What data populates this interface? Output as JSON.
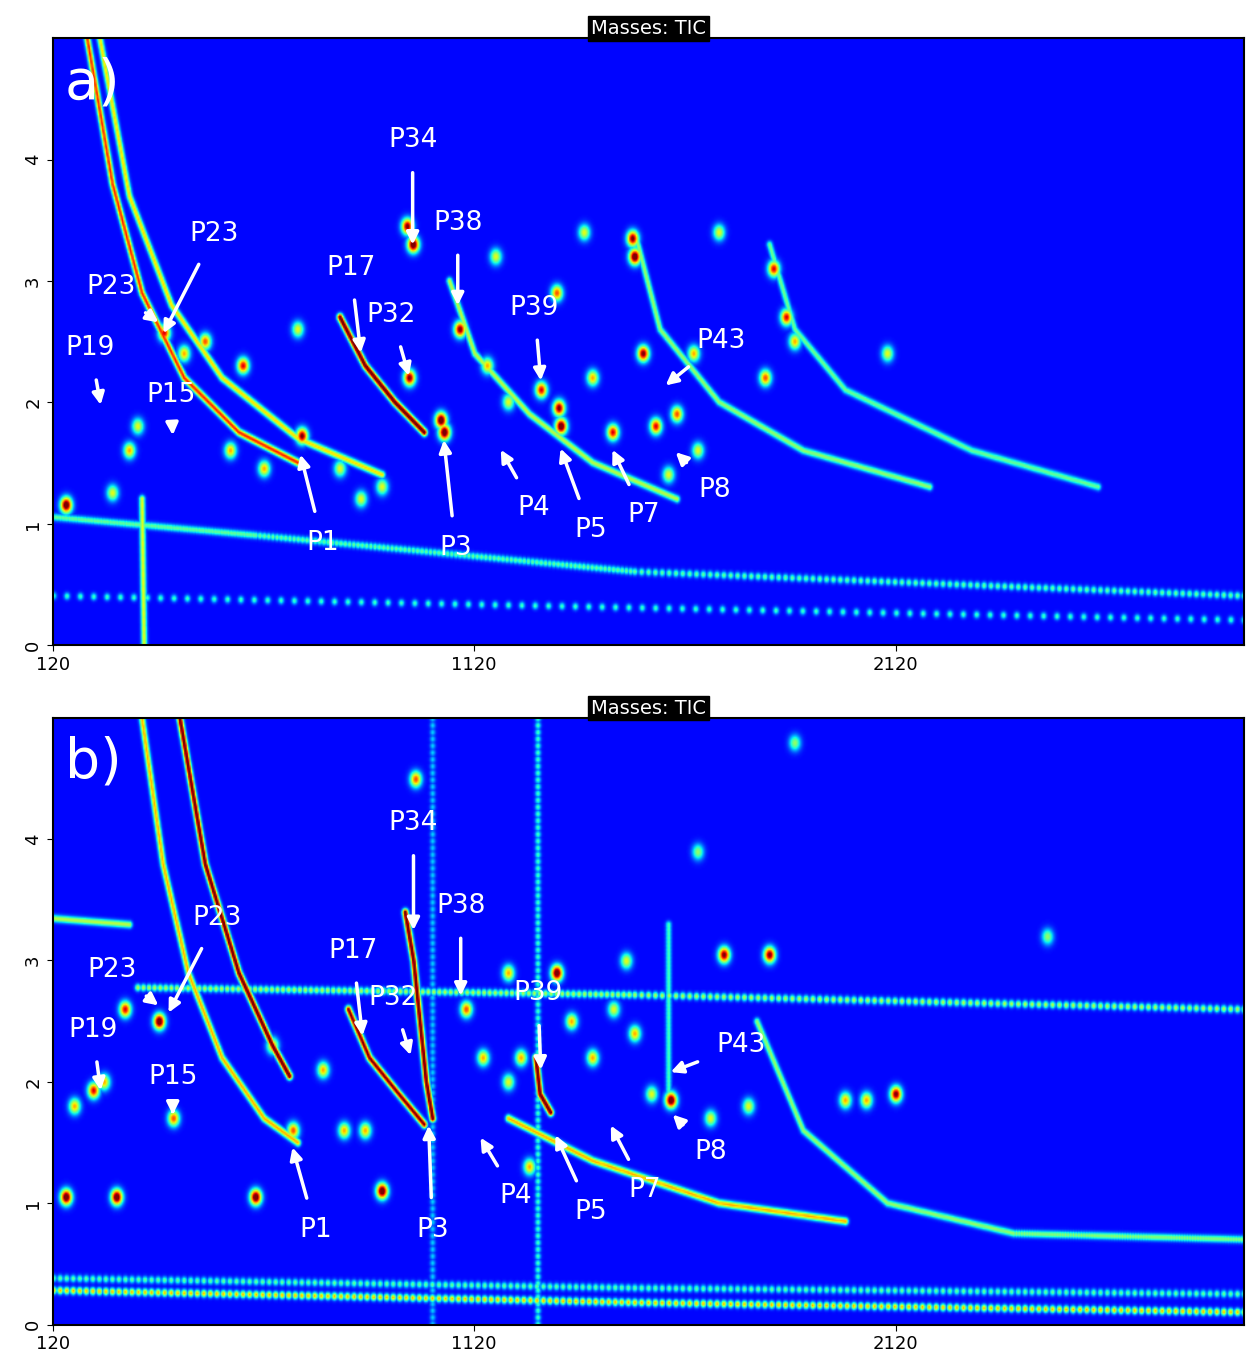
{
  "chart_data": [
    {
      "type": "heatmap",
      "title": "Masses: TIC",
      "panel_label": "a)",
      "xlim": [
        120,
        2947
      ],
      "ylim": [
        0,
        5
      ],
      "xticks": [
        120,
        1120,
        2120
      ],
      "yticks": [
        0,
        1,
        2,
        3,
        4
      ],
      "annotations": [
        {
          "text": "P34",
          "x": 974,
          "y": 4.16,
          "tip_x": 974,
          "tip_y": 3.3
        },
        {
          "text": "P38",
          "x": 1081,
          "y": 3.48,
          "tip_x": 1081,
          "tip_y": 2.8
        },
        {
          "text": "P17",
          "x": 827,
          "y": 3.11,
          "tip_x": 851,
          "tip_y": 2.41
        },
        {
          "text": "P32",
          "x": 924,
          "y": 2.72,
          "tip_x": 965,
          "tip_y": 2.22
        },
        {
          "text": "P23",
          "x": 258,
          "y": 2.95,
          "tip_x": 371,
          "tip_y": 2.66
        },
        {
          "text": "P23",
          "x": 504,
          "y": 3.39,
          "tip_x": 383,
          "tip_y": 2.57
        },
        {
          "text": "P19",
          "x": 210,
          "y": 2.45,
          "tip_x": 234,
          "tip_y": 1.98
        },
        {
          "text": "P15",
          "x": 400,
          "y": 2.06,
          "tip_x": 405,
          "tip_y": 1.73
        },
        {
          "text": "P1",
          "x": 761,
          "y": 0.84,
          "tip_x": 708,
          "tip_y": 1.57
        },
        {
          "text": "P3",
          "x": 1076,
          "y": 0.8,
          "tip_x": 1048,
          "tip_y": 1.69
        },
        {
          "text": "P4",
          "x": 1261,
          "y": 1.13,
          "tip_x": 1183,
          "tip_y": 1.61
        },
        {
          "text": "P39",
          "x": 1263,
          "y": 2.78,
          "tip_x": 1278,
          "tip_y": 2.18
        },
        {
          "text": "P5",
          "x": 1396,
          "y": 0.95,
          "tip_x": 1325,
          "tip_y": 1.62
        },
        {
          "text": "P7",
          "x": 1522,
          "y": 1.07,
          "tip_x": 1448,
          "tip_y": 1.61
        },
        {
          "text": "P43",
          "x": 1705,
          "y": 2.51,
          "tip_x": 1574,
          "tip_y": 2.14
        },
        {
          "text": "P8",
          "x": 1691,
          "y": 1.28,
          "tip_x": 1598,
          "tip_y": 1.59
        }
      ],
      "peaks": [
        [
          150,
          1.15,
          1.0
        ],
        [
          1048,
          1.75,
          1.0
        ],
        [
          1040,
          1.85,
          1.0
        ],
        [
          965,
          2.2,
          0.9
        ],
        [
          974,
          3.3,
          1.0
        ],
        [
          960,
          3.45,
          0.9
        ],
        [
          1325,
          1.8,
          1.0
        ],
        [
          1320,
          1.95,
          0.9
        ],
        [
          1278,
          2.1,
          0.8
        ],
        [
          1500,
          3.2,
          1.0
        ],
        [
          1495,
          3.35,
          0.9
        ],
        [
          1520,
          2.4,
          0.9
        ],
        [
          1830,
          3.1,
          0.8
        ],
        [
          1860,
          2.7,
          0.8
        ],
        [
          1550,
          1.8,
          0.8
        ],
        [
          1600,
          1.9,
          0.7
        ],
        [
          710,
          1.72,
          0.9
        ],
        [
          570,
          2.3,
          0.8
        ],
        [
          480,
          2.5,
          0.7
        ],
        [
          383,
          2.57,
          0.8
        ],
        [
          1085,
          2.6,
          0.9
        ],
        [
          1315,
          2.9,
          0.7
        ],
        [
          1448,
          1.75,
          0.8
        ],
        [
          620,
          1.45,
          0.6
        ],
        [
          540,
          1.6,
          0.6
        ],
        [
          430,
          2.4,
          0.6
        ],
        [
          300,
          1.6,
          0.6
        ],
        [
          320,
          1.8,
          0.5
        ],
        [
          260,
          1.25,
          0.5
        ],
        [
          800,
          1.45,
          0.5
        ],
        [
          850,
          1.2,
          0.5
        ],
        [
          900,
          1.3,
          0.5
        ],
        [
          1150,
          2.3,
          0.6
        ],
        [
          1200,
          2.0,
          0.5
        ],
        [
          1400,
          2.2,
          0.6
        ],
        [
          1640,
          2.4,
          0.6
        ],
        [
          1810,
          2.2,
          0.7
        ],
        [
          1880,
          2.5,
          0.6
        ],
        [
          2100,
          2.4,
          0.5
        ],
        [
          1380,
          3.4,
          0.5
        ],
        [
          1170,
          3.2,
          0.5
        ],
        [
          1700,
          3.4,
          0.5
        ],
        [
          1580,
          1.4,
          0.5
        ],
        [
          1650,
          1.6,
          0.5
        ],
        [
          700,
          2.6,
          0.5
        ]
      ],
      "streaks": [
        {
          "points": [
            [
              200,
              5.0
            ],
            [
              260,
              3.8
            ],
            [
              330,
              2.9
            ],
            [
              430,
              2.2
            ],
            [
              560,
              1.75
            ],
            [
              700,
              1.5
            ]
          ],
          "height": 0.75
        },
        {
          "points": [
            [
              230,
              5.0
            ],
            [
              300,
              3.7
            ],
            [
              400,
              2.8
            ],
            [
              520,
              2.2
            ],
            [
              700,
              1.7
            ],
            [
              900,
              1.4
            ]
          ],
          "height": 0.55
        },
        {
          "points": [
            [
              800,
              2.7
            ],
            [
              860,
              2.3
            ],
            [
              930,
              2.0
            ],
            [
              1000,
              1.75
            ]
          ],
          "height": 1.0
        },
        {
          "points": [
            [
              1060,
              3.0
            ],
            [
              1120,
              2.4
            ],
            [
              1250,
              1.9
            ],
            [
              1400,
              1.5
            ],
            [
              1600,
              1.2
            ]
          ],
          "height": 0.45
        },
        {
          "points": [
            [
              1500,
              3.4
            ],
            [
              1560,
              2.6
            ],
            [
              1700,
              2.0
            ],
            [
              1900,
              1.6
            ],
            [
              2200,
              1.3
            ]
          ],
          "height": 0.4
        },
        {
          "points": [
            [
              1820,
              3.3
            ],
            [
              1880,
              2.6
            ],
            [
              2000,
              2.1
            ],
            [
              2300,
              1.6
            ],
            [
              2600,
              1.3
            ]
          ],
          "height": 0.35
        },
        {
          "points": [
            [
              120,
              1.05
            ],
            [
              600,
              0.9
            ],
            [
              1500,
              0.6
            ],
            [
              2947,
              0.4
            ]
          ],
          "height": 0.35
        },
        {
          "points": [
            [
              120,
              0.4
            ],
            [
              2947,
              0.2
            ]
          ],
          "height": 0.3
        },
        {
          "points": [
            [
              330,
              1.2
            ],
            [
              335,
              0.0
            ]
          ],
          "height": 0.5
        }
      ]
    },
    {
      "type": "heatmap",
      "title": "Masses: TIC",
      "panel_label": "b)",
      "xlim": [
        120,
        2947
      ],
      "ylim": [
        0,
        5
      ],
      "xticks": [
        120,
        1120,
        2120
      ],
      "yticks": [
        0,
        1,
        2,
        3,
        4
      ],
      "annotations": [
        {
          "text": "P34",
          "x": 976,
          "y": 4.13,
          "tip_x": 976,
          "tip_y": 3.25
        },
        {
          "text": "P38",
          "x": 1088,
          "y": 3.45,
          "tip_x": 1088,
          "tip_y": 2.71
        },
        {
          "text": "P17",
          "x": 832,
          "y": 3.08,
          "tip_x": 855,
          "tip_y": 2.38
        },
        {
          "text": "P32",
          "x": 927,
          "y": 2.69,
          "tip_x": 969,
          "tip_y": 2.22
        },
        {
          "text": "P23",
          "x": 262,
          "y": 2.92,
          "tip_x": 371,
          "tip_y": 2.63
        },
        {
          "text": "P23",
          "x": 511,
          "y": 3.35,
          "tip_x": 395,
          "tip_y": 2.57
        },
        {
          "text": "P19",
          "x": 215,
          "y": 2.43,
          "tip_x": 234,
          "tip_y": 1.93
        },
        {
          "text": "P15",
          "x": 405,
          "y": 2.04,
          "tip_x": 405,
          "tip_y": 1.73
        },
        {
          "text": "P1",
          "x": 744,
          "y": 0.78,
          "tip_x": 689,
          "tip_y": 1.46
        },
        {
          "text": "P3",
          "x": 1021,
          "y": 0.78,
          "tip_x": 1012,
          "tip_y": 1.64
        },
        {
          "text": "P4",
          "x": 1218,
          "y": 1.06,
          "tip_x": 1135,
          "tip_y": 1.54
        },
        {
          "text": "P39",
          "x": 1271,
          "y": 2.73,
          "tip_x": 1278,
          "tip_y": 2.1
        },
        {
          "text": "P5",
          "x": 1396,
          "y": 0.93,
          "tip_x": 1313,
          "tip_y": 1.56
        },
        {
          "text": "P7",
          "x": 1524,
          "y": 1.11,
          "tip_x": 1444,
          "tip_y": 1.64
        },
        {
          "text": "P43",
          "x": 1752,
          "y": 2.3,
          "tip_x": 1586,
          "tip_y": 2.08
        },
        {
          "text": "P8",
          "x": 1681,
          "y": 1.42,
          "tip_x": 1591,
          "tip_y": 1.73
        }
      ],
      "peaks": [
        [
          150,
          1.05,
          1.0
        ],
        [
          270,
          1.05,
          1.0
        ],
        [
          371,
          2.5,
          1.0
        ],
        [
          1315,
          2.9,
          1.0
        ],
        [
          1586,
          1.85,
          1.0
        ],
        [
          1712,
          3.05,
          0.9
        ],
        [
          1820,
          3.05,
          0.9
        ],
        [
          2120,
          1.9,
          0.9
        ],
        [
          600,
          1.05,
          1.0
        ],
        [
          900,
          1.1,
          1.0
        ],
        [
          980,
          4.5,
          0.7
        ],
        [
          215,
          1.93,
          0.8
        ],
        [
          405,
          1.7,
          0.7
        ],
        [
          689,
          1.6,
          0.7
        ],
        [
          290,
          2.6,
          0.8
        ],
        [
          240,
          2.0,
          0.6
        ],
        [
          170,
          1.8,
          0.6
        ],
        [
          640,
          2.3,
          0.6
        ],
        [
          760,
          2.1,
          0.6
        ],
        [
          810,
          1.6,
          0.6
        ],
        [
          860,
          1.6,
          0.6
        ],
        [
          1100,
          2.6,
          0.7
        ],
        [
          1140,
          2.2,
          0.6
        ],
        [
          1200,
          2.9,
          0.6
        ],
        [
          1230,
          2.2,
          0.6
        ],
        [
          1350,
          2.5,
          0.6
        ],
        [
          1400,
          2.2,
          0.6
        ],
        [
          1450,
          2.6,
          0.5
        ],
        [
          1500,
          2.4,
          0.6
        ],
        [
          1540,
          1.9,
          0.5
        ],
        [
          1480,
          3.0,
          0.5
        ],
        [
          1250,
          1.3,
          0.6
        ],
        [
          1680,
          1.7,
          0.5
        ],
        [
          1770,
          1.8,
          0.5
        ],
        [
          2050,
          1.85,
          0.6
        ],
        [
          2000,
          1.85,
          0.6
        ],
        [
          2480,
          3.2,
          0.4
        ],
        [
          1880,
          4.8,
          0.4
        ],
        [
          1650,
          3.9,
          0.4
        ],
        [
          1200,
          2.0,
          0.5
        ]
      ],
      "streaks": [
        {
          "points": [
            [
              320,
              2.78
            ],
            [
              1500,
              2.72
            ],
            [
              2947,
              2.6
            ]
          ],
          "height": 0.45
        },
        {
          "points": [
            [
              120,
              0.28
            ],
            [
              1500,
              0.18
            ],
            [
              2947,
              0.1
            ]
          ],
          "height": 0.6
        },
        {
          "points": [
            [
              120,
              0.38
            ],
            [
              1500,
              0.3
            ],
            [
              2947,
              0.25
            ]
          ],
          "height": 0.35
        },
        {
          "points": [
            [
              120,
              3.35
            ],
            [
              300,
              3.3
            ]
          ],
          "height": 0.45
        },
        {
          "points": [
            [
              420,
              5.0
            ],
            [
              480,
              3.8
            ],
            [
              560,
              2.9
            ],
            [
              640,
              2.3
            ],
            [
              680,
              2.05
            ]
          ],
          "height": 1.0
        },
        {
          "points": [
            [
              330,
              5.0
            ],
            [
              380,
              3.8
            ],
            [
              440,
              2.9
            ],
            [
              520,
              2.2
            ],
            [
              620,
              1.7
            ],
            [
              700,
              1.5
            ]
          ],
          "height": 0.6
        },
        {
          "points": [
            [
              955,
              3.4
            ],
            [
              975,
              3.0
            ],
            [
              990,
              2.5
            ],
            [
              1005,
              2.0
            ],
            [
              1020,
              1.7
            ]
          ],
          "height": 1.0
        },
        {
          "points": [
            [
              820,
              2.6
            ],
            [
              870,
              2.2
            ],
            [
              940,
              1.9
            ],
            [
              1000,
              1.65
            ]
          ],
          "height": 0.9
        },
        {
          "points": [
            [
              1265,
              2.2
            ],
            [
              1275,
              1.9
            ],
            [
              1300,
              1.75
            ]
          ],
          "height": 1.0
        },
        {
          "points": [
            [
              1200,
              1.7
            ],
            [
              1400,
              1.35
            ],
            [
              1700,
              1.0
            ],
            [
              2000,
              0.85
            ]
          ],
          "height": 0.6
        },
        {
          "points": [
            [
              1270,
              0.0
            ],
            [
              1270,
              5.0
            ]
          ],
          "height": 0.3
        },
        {
          "points": [
            [
              1020,
              0.0
            ],
            [
              1020,
              5.0
            ]
          ],
          "height": 0.2
        },
        {
          "points": [
            [
              1580,
              1.8
            ],
            [
              1580,
              3.3
            ]
          ],
          "height": 0.3
        },
        {
          "points": [
            [
              1790,
              2.5
            ],
            [
              1900,
              1.6
            ],
            [
              2100,
              1.0
            ],
            [
              2400,
              0.75
            ],
            [
              2947,
              0.7
            ]
          ],
          "height": 0.4
        }
      ]
    }
  ]
}
